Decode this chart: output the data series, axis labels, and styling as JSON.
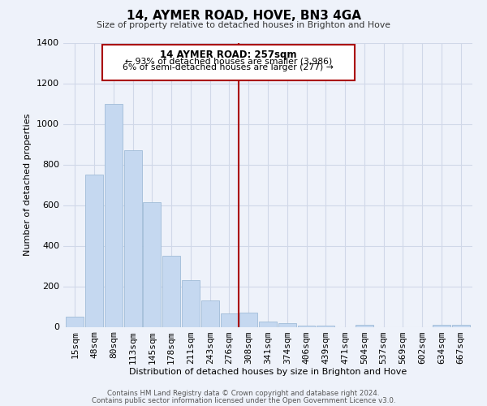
{
  "title": "14, AYMER ROAD, HOVE, BN3 4GA",
  "subtitle": "Size of property relative to detached houses in Brighton and Hove",
  "xlabel": "Distribution of detached houses by size in Brighton and Hove",
  "ylabel": "Number of detached properties",
  "bar_labels": [
    "15sqm",
    "48sqm",
    "80sqm",
    "113sqm",
    "145sqm",
    "178sqm",
    "211sqm",
    "243sqm",
    "276sqm",
    "308sqm",
    "341sqm",
    "374sqm",
    "406sqm",
    "439sqm",
    "471sqm",
    "504sqm",
    "537sqm",
    "569sqm",
    "602sqm",
    "634sqm",
    "667sqm"
  ],
  "bar_values": [
    50,
    750,
    1100,
    870,
    615,
    350,
    230,
    130,
    65,
    70,
    25,
    20,
    5,
    5,
    0,
    10,
    0,
    0,
    0,
    10,
    10
  ],
  "bar_color": "#c5d8f0",
  "bar_edge_color": "#a0bcd8",
  "property_line_x": 8.5,
  "annotation_title": "14 AYMER ROAD: 257sqm",
  "annotation_line1": "← 93% of detached houses are smaller (3,986)",
  "annotation_line2": "6% of semi-detached houses are larger (277) →",
  "annotation_box_color": "#ffffff",
  "annotation_box_edge": "#aa0000",
  "vline_color": "#aa0000",
  "ylim": [
    0,
    1400
  ],
  "yticks": [
    0,
    200,
    400,
    600,
    800,
    1000,
    1200,
    1400
  ],
  "footer_line1": "Contains HM Land Registry data © Crown copyright and database right 2024.",
  "footer_line2": "Contains public sector information licensed under the Open Government Licence v3.0.",
  "background_color": "#eef2fa",
  "grid_color": "#d0d8e8"
}
